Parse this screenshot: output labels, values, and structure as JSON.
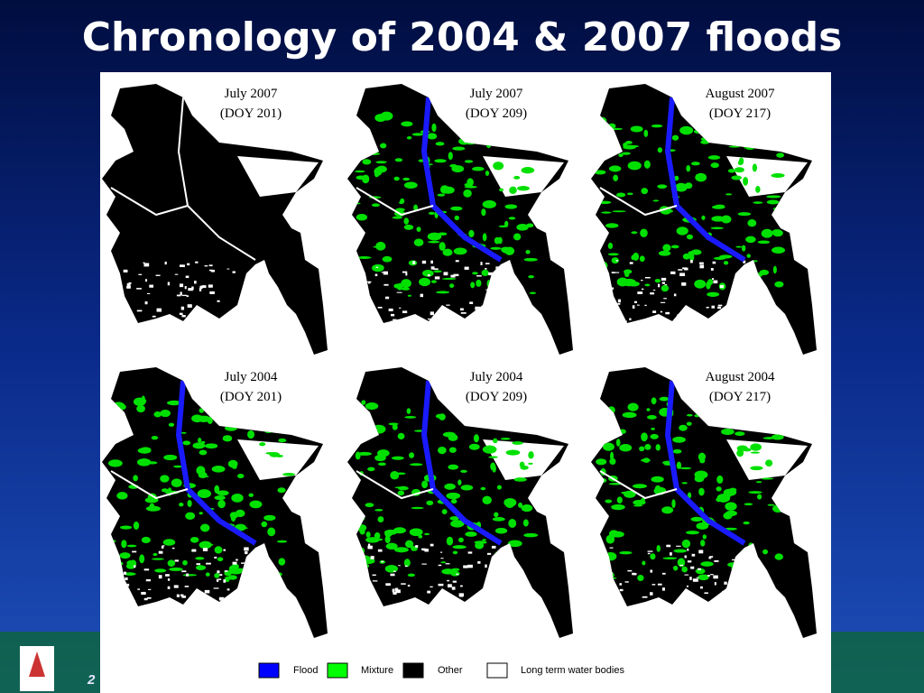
{
  "header": {
    "title": "Chronology of 2004 & 2007 floods"
  },
  "panels": [
    {
      "line1": "July 2007",
      "line2": "(DOY 201)"
    },
    {
      "line1": "July 2007",
      "line2": "(DOY 209)"
    },
    {
      "line1": "August 2007",
      "line2": "(DOY 217)"
    },
    {
      "line1": "July 2004",
      "line2": "(DOY 201)"
    },
    {
      "line1": "July 2004",
      "line2": "(DOY 209)"
    },
    {
      "line1": "August 2004",
      "line2": "(DOY 217)"
    }
  ],
  "legend": [
    {
      "label": "Flood",
      "color": "#0000ff"
    },
    {
      "label": "Mixture",
      "color": "#00ff00"
    },
    {
      "label": "Other",
      "color": "#000000"
    },
    {
      "label": "Long term water bodies",
      "color": "#ffffff"
    }
  ],
  "footer": {
    "page_number": "2"
  }
}
